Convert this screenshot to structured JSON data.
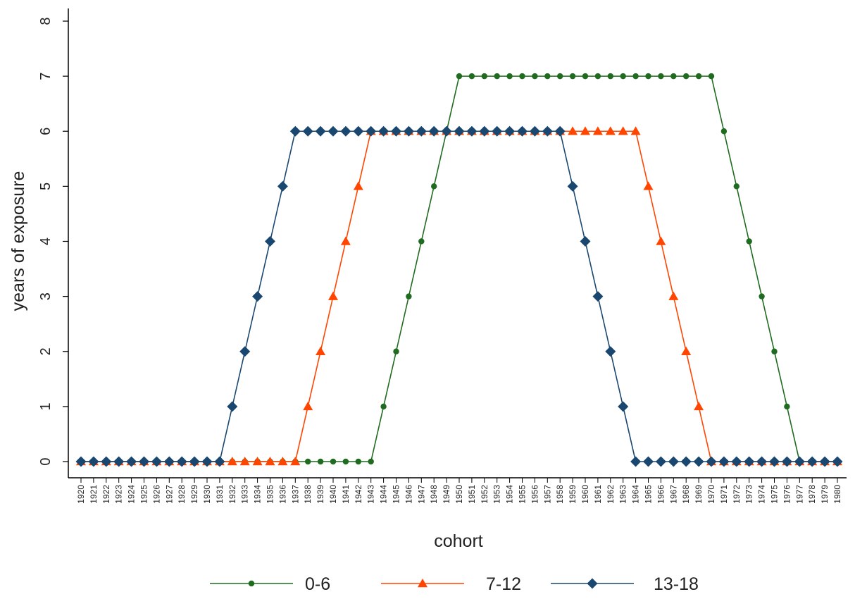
{
  "chart_data": {
    "type": "line",
    "xlabel": "cohort",
    "ylabel": "years of exposure",
    "xlim": [
      1920,
      1980
    ],
    "ylim": [
      0,
      8
    ],
    "y_ticks": [
      0,
      1,
      2,
      3,
      4,
      5,
      6,
      7,
      8
    ],
    "x_ticks": [
      "1920",
      "1921",
      "1922",
      "1923",
      "1924",
      "1925",
      "1926",
      "1927",
      "1928",
      "1929",
      "1930",
      "1931",
      "1932",
      "1933",
      "1934",
      "1935",
      "1936",
      "1937",
      "1938",
      "1939",
      "1940",
      "1941",
      "1942",
      "1943",
      "1944",
      "1945",
      "1946",
      "1947",
      "1948",
      "1949",
      "1950",
      "1951",
      "1952",
      "1953",
      "1954",
      "1955",
      "1956",
      "1957",
      "1958",
      "1959",
      "1960",
      "1961",
      "1962",
      "1963",
      "1964",
      "1965",
      "1966",
      "1967",
      "1968",
      "1969",
      "1970",
      "1971",
      "1972",
      "1973",
      "1974",
      "1975",
      "1976",
      "1977",
      "1978",
      "1979",
      "1980"
    ],
    "grid": false,
    "legend": "bottom",
    "x": [
      1920,
      1921,
      1922,
      1923,
      1924,
      1925,
      1926,
      1927,
      1928,
      1929,
      1930,
      1931,
      1932,
      1933,
      1934,
      1935,
      1936,
      1937,
      1938,
      1939,
      1940,
      1941,
      1942,
      1943,
      1944,
      1945,
      1946,
      1947,
      1948,
      1949,
      1950,
      1951,
      1952,
      1953,
      1954,
      1955,
      1956,
      1957,
      1958,
      1959,
      1960,
      1961,
      1962,
      1963,
      1964,
      1965,
      1966,
      1967,
      1968,
      1969,
      1970,
      1971,
      1972,
      1973,
      1974,
      1975,
      1976,
      1977,
      1978,
      1979,
      1980
    ],
    "series": [
      {
        "name": "0-6",
        "color": "#1f6b1f",
        "marker": "circle",
        "values": [
          0,
          0,
          0,
          0,
          0,
          0,
          0,
          0,
          0,
          0,
          0,
          0,
          0,
          0,
          0,
          0,
          0,
          0,
          0,
          0,
          0,
          0,
          0,
          0,
          1,
          2,
          3,
          4,
          5,
          6,
          7,
          7,
          7,
          7,
          7,
          7,
          7,
          7,
          7,
          7,
          7,
          7,
          7,
          7,
          7,
          7,
          7,
          7,
          7,
          7,
          7,
          6,
          5,
          4,
          3,
          2,
          1,
          0,
          0,
          0,
          0
        ]
      },
      {
        "name": "7-12",
        "color": "#ff4500",
        "marker": "triangle",
        "values": [
          0,
          0,
          0,
          0,
          0,
          0,
          0,
          0,
          0,
          0,
          0,
          0,
          0,
          0,
          0,
          0,
          0,
          0,
          1,
          2,
          3,
          4,
          5,
          6,
          6,
          6,
          6,
          6,
          6,
          6,
          6,
          6,
          6,
          6,
          6,
          6,
          6,
          6,
          6,
          6,
          6,
          6,
          6,
          6,
          6,
          5,
          4,
          3,
          2,
          1,
          0,
          0,
          0,
          0,
          0,
          0,
          0,
          0,
          0,
          0,
          0
        ]
      },
      {
        "name": "13-18",
        "color": "#1a476f",
        "marker": "diamond",
        "values": [
          0,
          0,
          0,
          0,
          0,
          0,
          0,
          0,
          0,
          0,
          0,
          0,
          1,
          2,
          3,
          4,
          5,
          6,
          6,
          6,
          6,
          6,
          6,
          6,
          6,
          6,
          6,
          6,
          6,
          6,
          6,
          6,
          6,
          6,
          6,
          6,
          6,
          6,
          6,
          5,
          4,
          3,
          2,
          1,
          0,
          0,
          0,
          0,
          0,
          0,
          0,
          0,
          0,
          0,
          0,
          0,
          0,
          0,
          0,
          0,
          0
        ]
      }
    ]
  }
}
